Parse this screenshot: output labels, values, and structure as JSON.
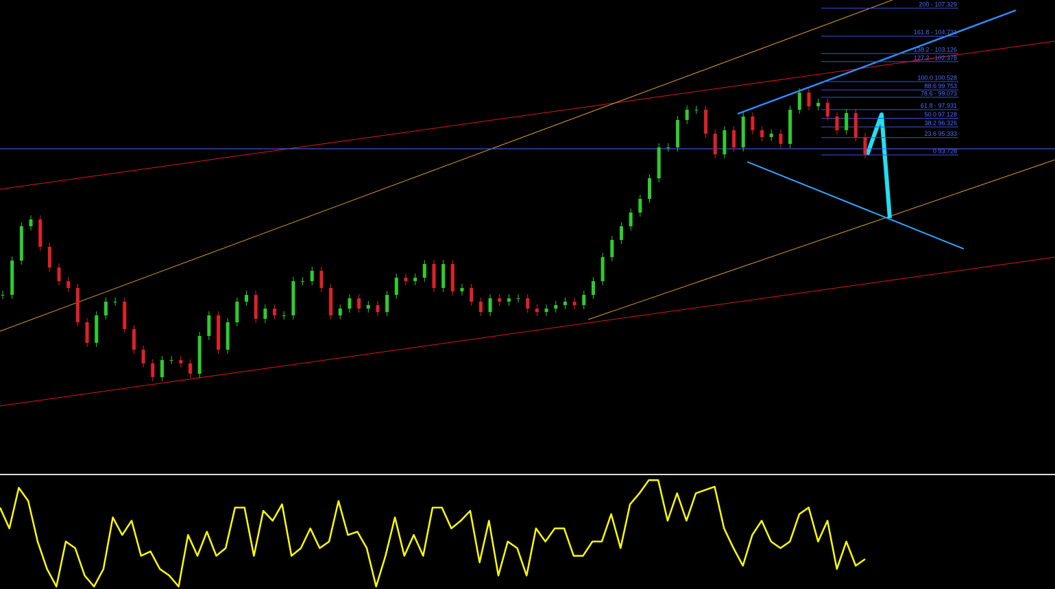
{
  "chart_data": {
    "type": "candlestick",
    "ylim": [
      64.24,
      108.09
    ],
    "up_color": "#2ecc2e",
    "down_color": "#e0202a",
    "reference_price": 94.3,
    "values": [
      80.76,
      83.94,
      87.12,
      87.75,
      85.21,
      83.3,
      82.03,
      81.4,
      78.22,
      76.31,
      78.86,
      80.13,
      80.13,
      77.59,
      75.68,
      74.41,
      73.14,
      74.72,
      74.72,
      74.41,
      73.45,
      76.95,
      78.86,
      75.68,
      78.22,
      80.13,
      80.76,
      78.54,
      79.49,
      78.86,
      78.86,
      82.03,
      82.03,
      82.99,
      81.4,
      78.86,
      79.49,
      80.44,
      79.49,
      79.81,
      79.17,
      80.76,
      82.35,
      82.03,
      82.35,
      83.62,
      81.4,
      83.62,
      81.08,
      81.4,
      80.13,
      79.17,
      80.44,
      80.13,
      80.44,
      80.44,
      79.49,
      79.17,
      79.49,
      79.81,
      80.13,
      79.81,
      80.76,
      82.03,
      84.26,
      85.85,
      87.12,
      88.39,
      89.66,
      91.57,
      94.43,
      94.43,
      96.97,
      97.92,
      97.92,
      95.7,
      93.79,
      96.02,
      94.43,
      97.29,
      96.02,
      95.38,
      95.7,
      94.75,
      97.92,
      99.51,
      98.24,
      98.56,
      97.29,
      96.02,
      97.61,
      95.38,
      93.79
    ],
    "fib_levels": [
      {
        "price": 107.329,
        "label": "200 - 107.329"
      },
      {
        "price": 104.731,
        "label": "161.8 - 104.731"
      },
      {
        "price": 103.126,
        "label": "138.2 - 103.126"
      },
      {
        "price": 102.378,
        "label": "127.2 - 102.378"
      },
      {
        "price": 100.528,
        "label": "100.0 100.528"
      },
      {
        "price": 99.753,
        "label": "88.6 99.753"
      },
      {
        "price": 99.073,
        "label": "78.6 - 99.073"
      },
      {
        "price": 97.931,
        "label": "61.8 - 97.931"
      },
      {
        "price": 97.128,
        "label": "50.0 97.128"
      },
      {
        "price": 96.326,
        "label": "38.2 96.326"
      },
      {
        "price": 95.333,
        "label": "23.6 95.333"
      },
      {
        "price": 93.728,
        "label": "0 93.728"
      }
    ],
    "oscillator": {
      "color": "#ffff00",
      "ylim": [
        0,
        100
      ],
      "values": [
        73,
        54,
        91,
        79,
        42,
        17,
        1,
        42,
        36,
        11,
        1,
        17,
        64,
        48,
        61,
        29,
        33,
        17,
        11,
        1,
        48,
        29,
        51,
        29,
        36,
        73,
        73,
        29,
        70,
        61,
        76,
        29,
        36,
        54,
        36,
        42,
        79,
        48,
        51,
        36,
        1,
        29,
        64,
        29,
        48,
        29,
        73,
        73,
        54,
        61,
        70,
        23,
        61,
        11,
        42,
        36,
        11,
        54,
        42,
        54,
        54,
        29,
        29,
        42,
        42,
        67,
        36,
        76,
        86,
        98,
        98,
        61,
        86,
        61,
        86,
        89,
        92,
        54,
        36,
        20,
        48,
        61,
        42,
        36,
        42,
        67,
        73,
        42,
        61,
        17,
        42,
        20,
        26
      ]
    }
  }
}
